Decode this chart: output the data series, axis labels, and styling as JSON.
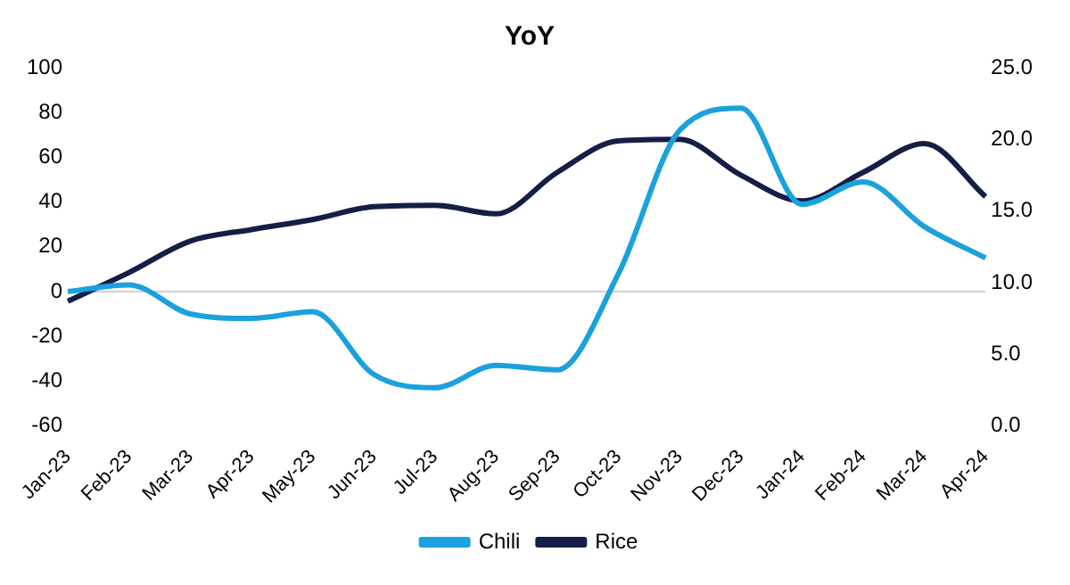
{
  "chart_data": {
    "type": "line",
    "title": "YoY",
    "categories": [
      "Jan-23",
      "Feb-23",
      "Mar-23",
      "Apr-23",
      "May-23",
      "Jun-23",
      "Jul-23",
      "Aug-23",
      "Sep-23",
      "Oct-23",
      "Nov-23",
      "Dec-23",
      "Jan-24",
      "Feb-24",
      "Mar-24",
      "Apr-24"
    ],
    "series": [
      {
        "name": "Chili",
        "color": "#1ba1dc",
        "values": [
          0,
          3,
          -10,
          -12,
          -9,
          -37,
          -43,
          -33,
          -35,
          8,
          72,
          82,
          39,
          49,
          29,
          15
        ]
      },
      {
        "name": "Rice",
        "color": "#141e46",
        "axis": "y2",
        "values": [
          8.7,
          10.7,
          12.9,
          13.7,
          14.4,
          15.3,
          15.4,
          14.8,
          17.7,
          19.9,
          20.0,
          17.5,
          15.7,
          17.7,
          19.7,
          16.0
        ]
      }
    ],
    "ylim": [
      -60,
      100
    ],
    "yticks": [
      -60,
      -40,
      -20,
      0,
      20,
      40,
      60,
      80,
      100
    ],
    "y2lim": [
      0,
      25
    ],
    "y2ticks": [
      {
        "value": 0,
        "label": "0.0"
      },
      {
        "value": 5,
        "label": "5.0"
      },
      {
        "value": 10,
        "label": "10.0"
      },
      {
        "value": 15,
        "label": "15.0"
      },
      {
        "value": 20,
        "label": "20.0"
      },
      {
        "value": 25,
        "label": "25.0"
      }
    ],
    "ref_lines": [
      {
        "axis": "y",
        "value": 0,
        "color": "#d0d0d0"
      }
    ],
    "grid": false,
    "legend": "bottom",
    "marker": "none",
    "line_style": "solid"
  }
}
